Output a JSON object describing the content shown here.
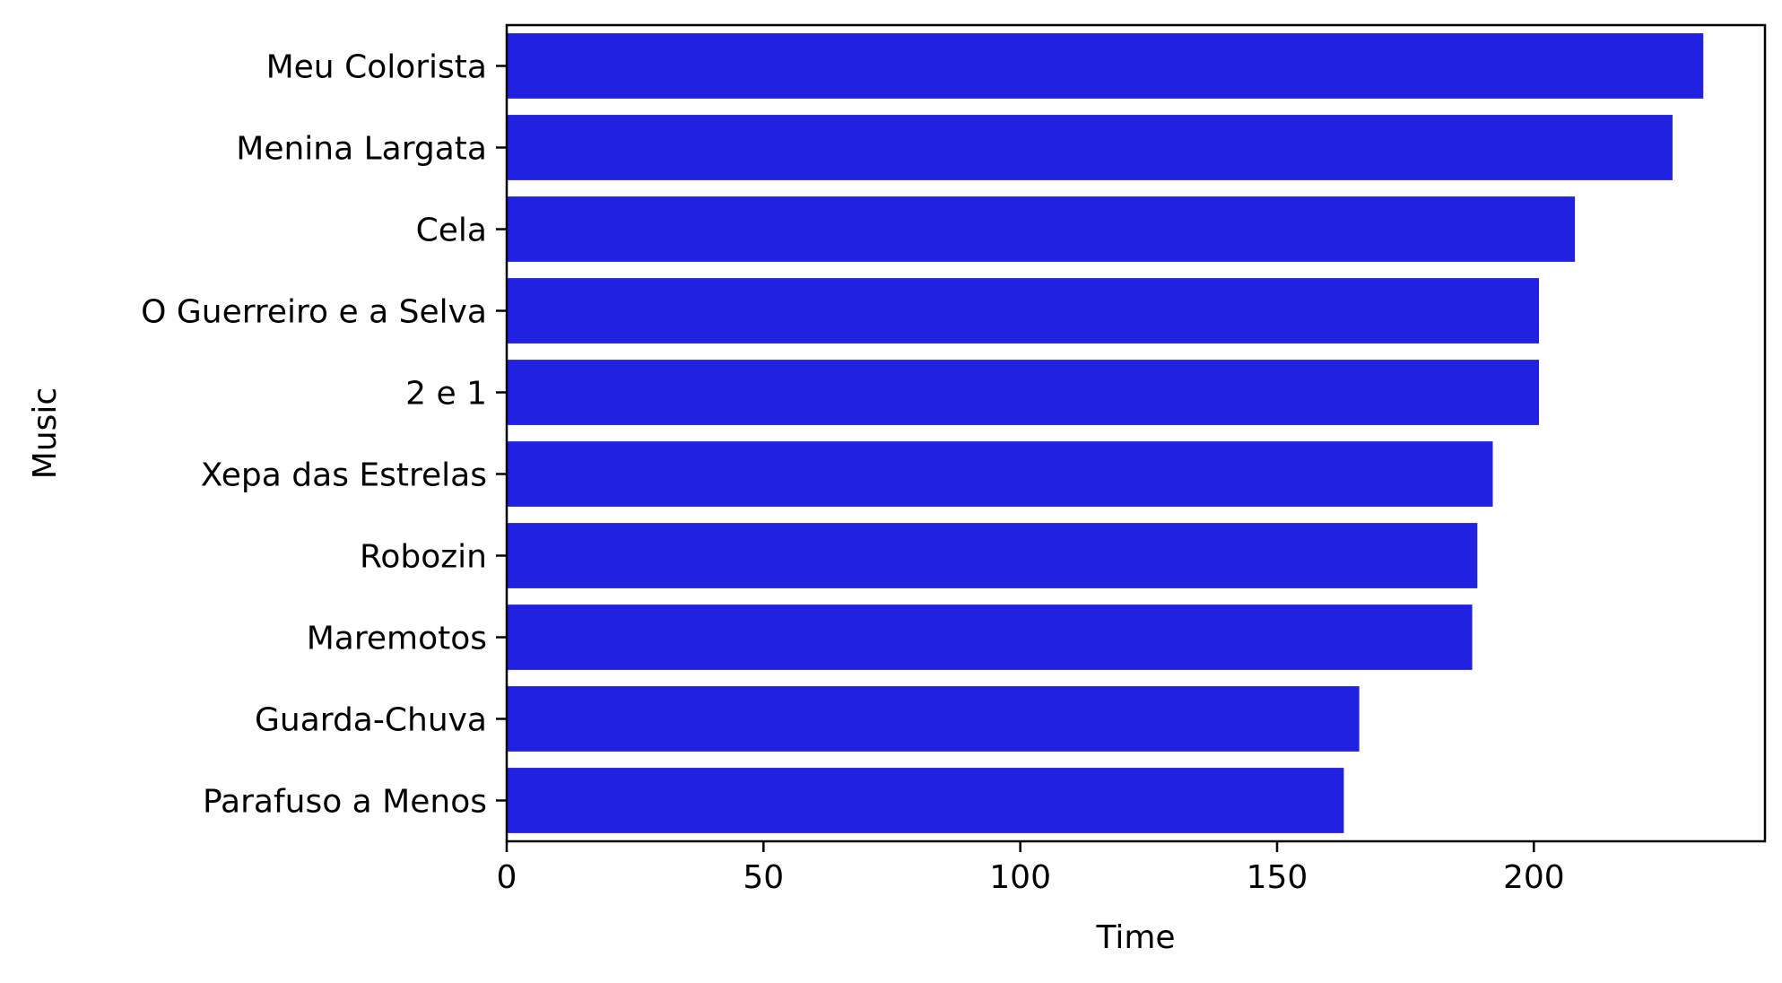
{
  "chart_data": {
    "type": "bar",
    "orientation": "horizontal",
    "categories": [
      "Meu Colorista",
      "Menina Largata",
      "Cela",
      "O Guerreiro e a Selva",
      "2 e 1",
      "Xepa das Estrelas",
      "Robozin",
      "Maremotos",
      "Guarda-Chuva",
      "Parafuso a Menos"
    ],
    "values": [
      233,
      227,
      208,
      201,
      201,
      192,
      189,
      188,
      166,
      163
    ],
    "xlabel": "Time",
    "ylabel": "Music",
    "xlim": [
      0,
      245
    ],
    "xticks": [
      0,
      50,
      100,
      150,
      200
    ],
    "bar_color": "#2121e1",
    "grid": false,
    "legend": "none"
  }
}
